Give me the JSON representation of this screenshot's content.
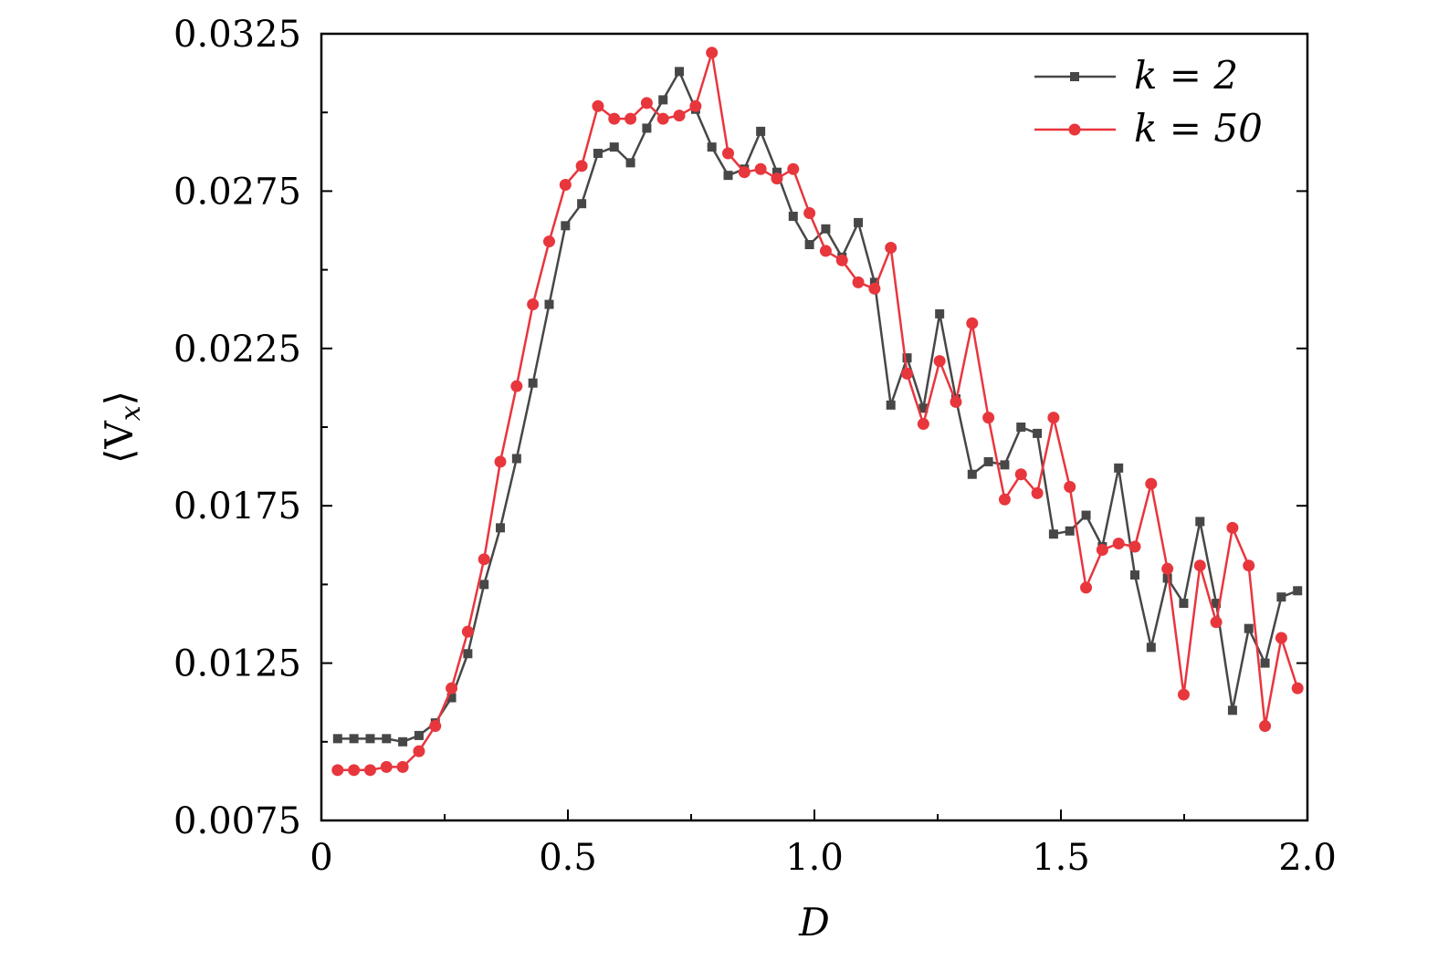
{
  "chart_data": {
    "type": "line",
    "title": "",
    "xlabel": "D",
    "ylabel": "⟨V_x⟩",
    "xlim": [
      0,
      2.0
    ],
    "ylim": [
      0.0075,
      0.0325
    ],
    "x_ticks": [
      "0",
      "0.5",
      "1.0",
      "1.5",
      "2.0"
    ],
    "y_ticks": [
      "0.0075",
      "0.0125",
      "0.0175",
      "0.0225",
      "0.0275",
      "0.0325"
    ],
    "grid": false,
    "legend_position": "top-right",
    "x": [
      0.033,
      0.066,
      0.099,
      0.132,
      0.165,
      0.198,
      0.231,
      0.264,
      0.297,
      0.33,
      0.363,
      0.396,
      0.429,
      0.462,
      0.495,
      0.528,
      0.561,
      0.594,
      0.627,
      0.66,
      0.693,
      0.726,
      0.759,
      0.792,
      0.825,
      0.858,
      0.891,
      0.924,
      0.957,
      0.99,
      1.023,
      1.056,
      1.089,
      1.122,
      1.155,
      1.188,
      1.221,
      1.254,
      1.287,
      1.32,
      1.353,
      1.386,
      1.419,
      1.452,
      1.485,
      1.518,
      1.551,
      1.584,
      1.617,
      1.65,
      1.683,
      1.716,
      1.749,
      1.782,
      1.815,
      1.848,
      1.881,
      1.914,
      1.947,
      1.98
    ],
    "series": [
      {
        "name": "k = 2",
        "color": "#474747",
        "marker": "square",
        "values": [
          0.0101,
          0.0101,
          0.0101,
          0.0101,
          0.01,
          0.0102,
          0.0106,
          0.0114,
          0.0128,
          0.015,
          0.0168,
          0.019,
          0.0214,
          0.0239,
          0.0264,
          0.0271,
          0.0287,
          0.0289,
          0.0284,
          0.0295,
          0.0304,
          0.0313,
          0.0301,
          0.0289,
          0.028,
          0.0282,
          0.0294,
          0.0281,
          0.0267,
          0.0258,
          0.0263,
          0.0254,
          0.0265,
          0.0246,
          0.0207,
          0.0222,
          0.0206,
          0.0236,
          0.0209,
          0.0185,
          0.0189,
          0.0188,
          0.02,
          0.0198,
          0.0166,
          0.0167,
          0.0172,
          0.0162,
          0.0187,
          0.0153,
          0.013,
          0.0152,
          0.0144,
          0.017,
          0.0144,
          0.011,
          0.0136,
          0.0125,
          0.0146,
          0.0148
        ]
      },
      {
        "name": "k = 50",
        "color": "#e8363d",
        "marker": "circle",
        "values": [
          0.0091,
          0.0091,
          0.0091,
          0.0092,
          0.0092,
          0.0097,
          0.0105,
          0.0117,
          0.0135,
          0.0158,
          0.0189,
          0.0213,
          0.0239,
          0.0259,
          0.0277,
          0.0283,
          0.0302,
          0.0298,
          0.0298,
          0.0303,
          0.0298,
          0.0299,
          0.0302,
          0.0319,
          0.0287,
          0.0281,
          0.0282,
          0.0279,
          0.0282,
          0.0268,
          0.0256,
          0.0253,
          0.0246,
          0.0244,
          0.0257,
          0.0217,
          0.0201,
          0.0221,
          0.0208,
          0.0233,
          0.0203,
          0.0177,
          0.0185,
          0.0179,
          0.0203,
          0.0181,
          0.0149,
          0.0161,
          0.0163,
          0.0162,
          0.0182,
          0.0155,
          0.0115,
          0.0156,
          0.0138,
          0.0168,
          0.0156,
          0.0105,
          0.0133,
          0.0117
        ]
      }
    ]
  },
  "legend": {
    "k2_label": "k = 2",
    "k50_label": "k = 50"
  }
}
